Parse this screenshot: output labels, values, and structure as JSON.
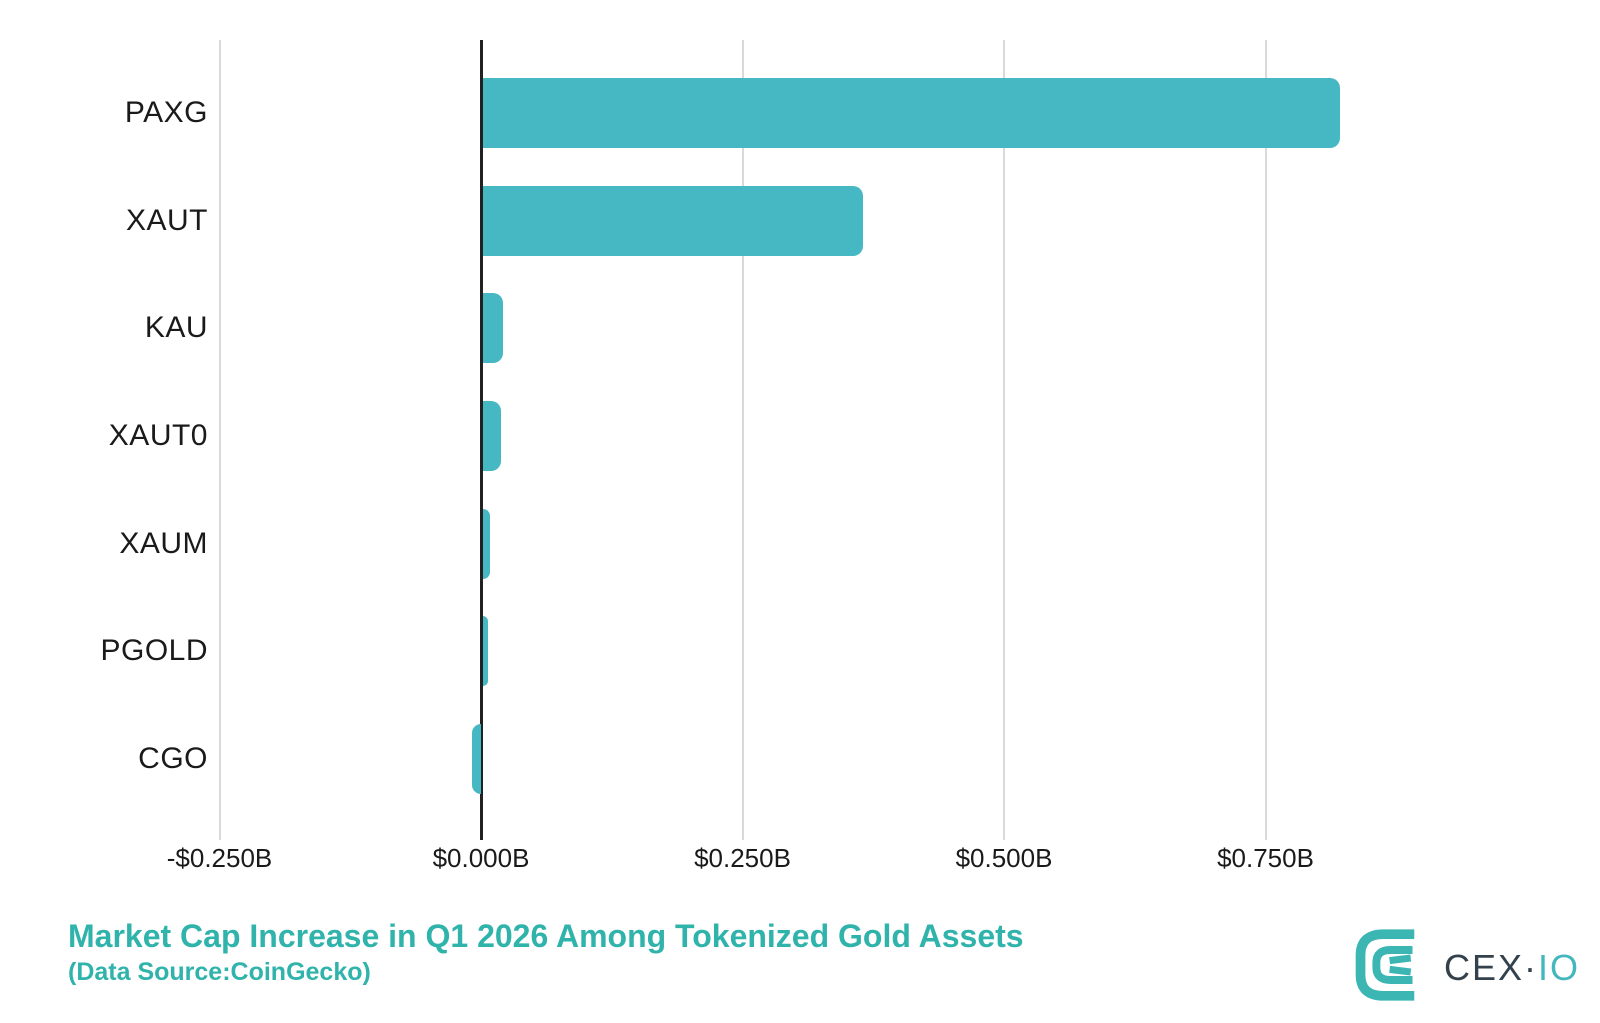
{
  "chart_data": {
    "type": "bar",
    "orientation": "horizontal",
    "title": "Market Cap Increase in Q1 2026 Among Tokenized Gold Assets",
    "subtitle": "(Data Source:CoinGecko)",
    "categories": [
      "PAXG",
      "XAUT",
      "KAU",
      "XAUT0",
      "XAUM",
      "PGOLD",
      "CGO"
    ],
    "values": [
      0.82,
      0.364,
      0.02,
      0.018,
      0.007,
      0.005,
      -0.009
    ],
    "unit": "billions USD",
    "x_ticks": [
      {
        "value": -0.25,
        "label": "-$0.250B"
      },
      {
        "value": 0.0,
        "label": "$0.000B"
      },
      {
        "value": 0.25,
        "label": "$0.250B"
      },
      {
        "value": 0.5,
        "label": "$0.500B"
      },
      {
        "value": 0.75,
        "label": "$0.750B"
      }
    ],
    "xlim": [
      -0.317,
      0.927
    ],
    "grid": "vertical",
    "legend": "none",
    "colors": {
      "bar": "#46b8c3",
      "zero_axis_line": "#212121",
      "gridline": "#d9d9d9",
      "tick_label": "#1a1a1a",
      "category_label": "#1a1a1a",
      "title": "#2fb3ab"
    }
  },
  "branding": {
    "logo_name": "CEX.IO logo",
    "text_primary": "CEX",
    "separator": "·",
    "text_secondary": "IO",
    "mark_color": "#3bb6b3",
    "text_primary_color": "#33414c",
    "text_secondary_color": "#43b7bd"
  }
}
